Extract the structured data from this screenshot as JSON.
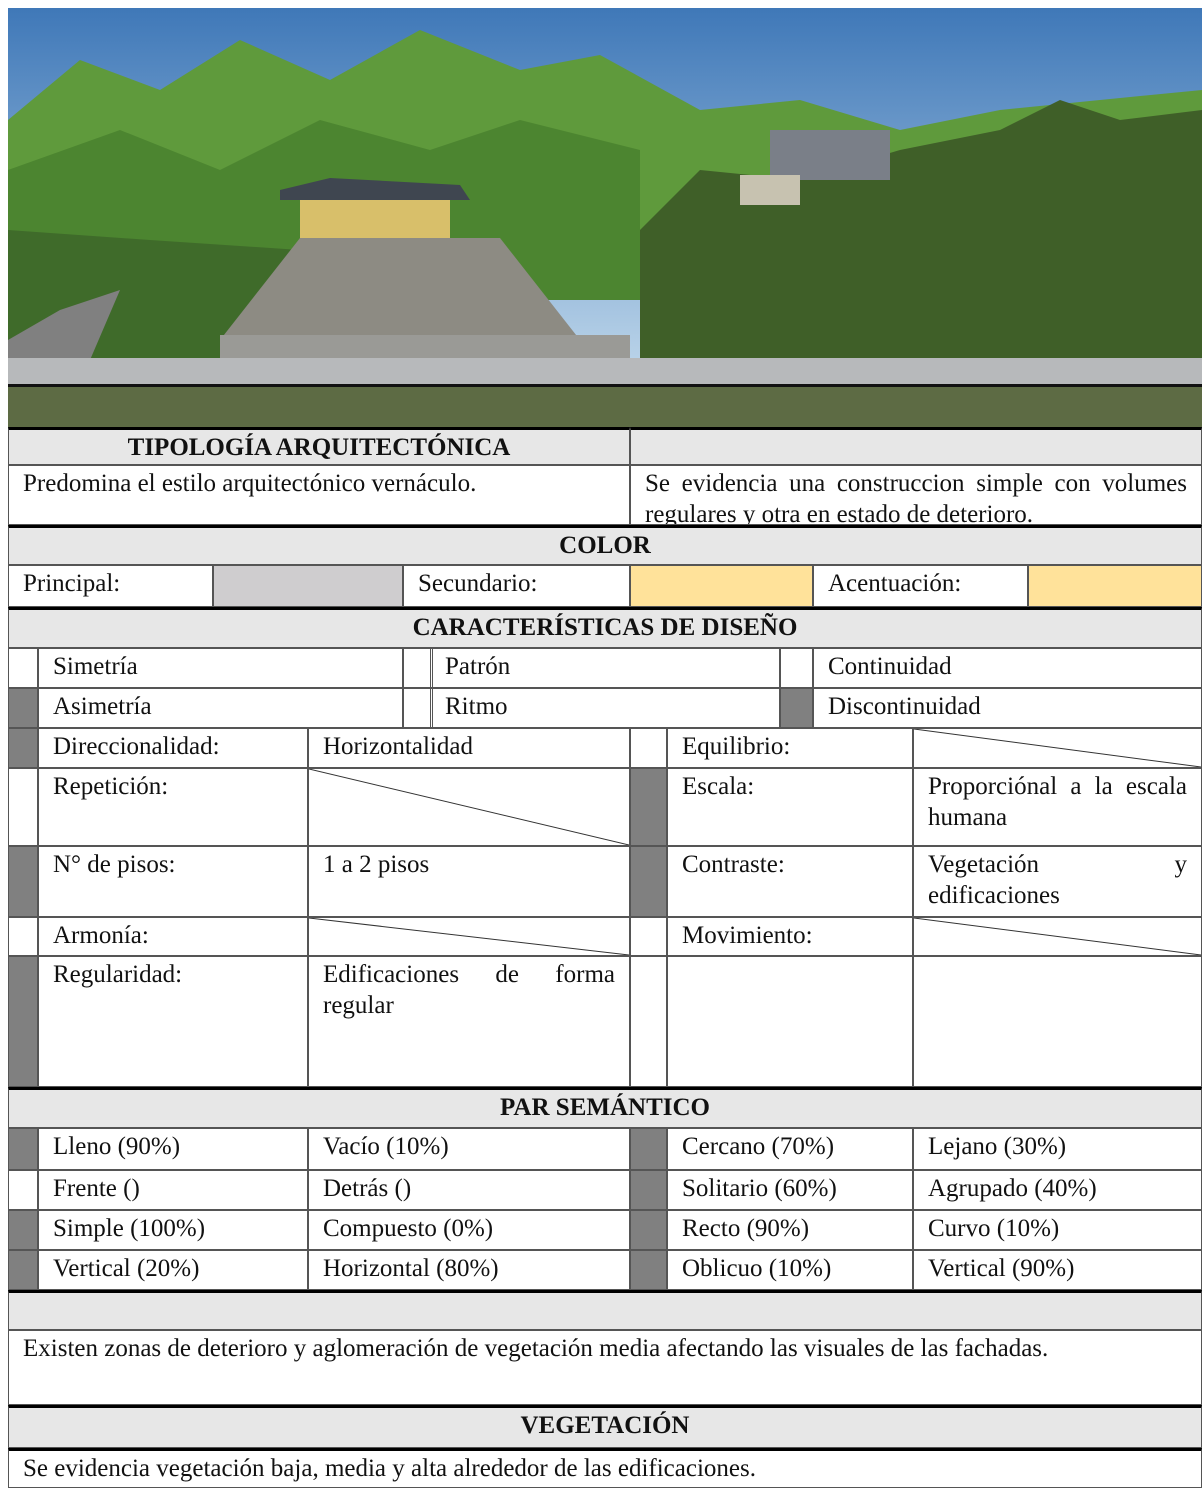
{
  "tipologia": {
    "title": "TIPOLOGÍA ARQUITECTÓNICA",
    "left": "Predomina el estilo arquitectónico vernáculo.",
    "right": "Se evidencia una construccion simple con volumes regulares y otra en estado de deterioro."
  },
  "color": {
    "title": "COLOR",
    "items": [
      {
        "label": "Principal:",
        "swatch": "#cfcdcf"
      },
      {
        "label": "Secundario:",
        "swatch": "#ffe29a"
      },
      {
        "label": "Acentuación:",
        "swatch": "#ffe29a"
      }
    ]
  },
  "design": {
    "title": "CARACTERÍSTICAS DE DISEÑO",
    "options": [
      [
        "Simetría",
        "Patrón",
        "Continuidad"
      ],
      [
        "Asimetría",
        "Ritmo",
        "Discontinuidad"
      ]
    ],
    "left": [
      {
        "label": "Direccionalidad:",
        "value": "Horizontalidad"
      },
      {
        "label": "Repetición:"
      },
      {
        "label": "N° de pisos:",
        "value": "1 a 2 pisos"
      },
      {
        "label": "Armonía:"
      },
      {
        "label": "Regularidad:",
        "value": "Edificaciones de forma regular"
      }
    ],
    "right": [
      {
        "label": "Equilibrio:"
      },
      {
        "label": "Escala:",
        "value": "Proporciónal a la escala humana"
      },
      {
        "label": "Contraste:",
        "value": "Vegetación y edificaciones"
      },
      {
        "label": "Movimiento:"
      }
    ]
  },
  "par": {
    "title": "PAR SEMÁNTICO",
    "rows": [
      [
        "Lleno (90%)",
        "Vacío (10%)",
        "Cercano (70%)",
        "Lejano (30%)"
      ],
      [
        "Frente ()",
        "Detrás ()",
        "Solitario (60%)",
        "Agrupado (40%)"
      ],
      [
        "Simple (100%)",
        "Compuesto (0%)",
        "Recto (90%)",
        "Curvo (10%)"
      ],
      [
        "Vertical (20%)",
        "Horizontal (80%)",
        "Oblicuo (10%)",
        "Vertical (90%)"
      ]
    ]
  },
  "observacion": "Existen zonas de deterioro y aglomeración de vegetación media afectando las visuales de las fachadas.",
  "vegetacion": {
    "title": "VEGETACIÓN",
    "text": "Se evidencia vegetación baja, media y alta alrededor de las edificaciones."
  }
}
